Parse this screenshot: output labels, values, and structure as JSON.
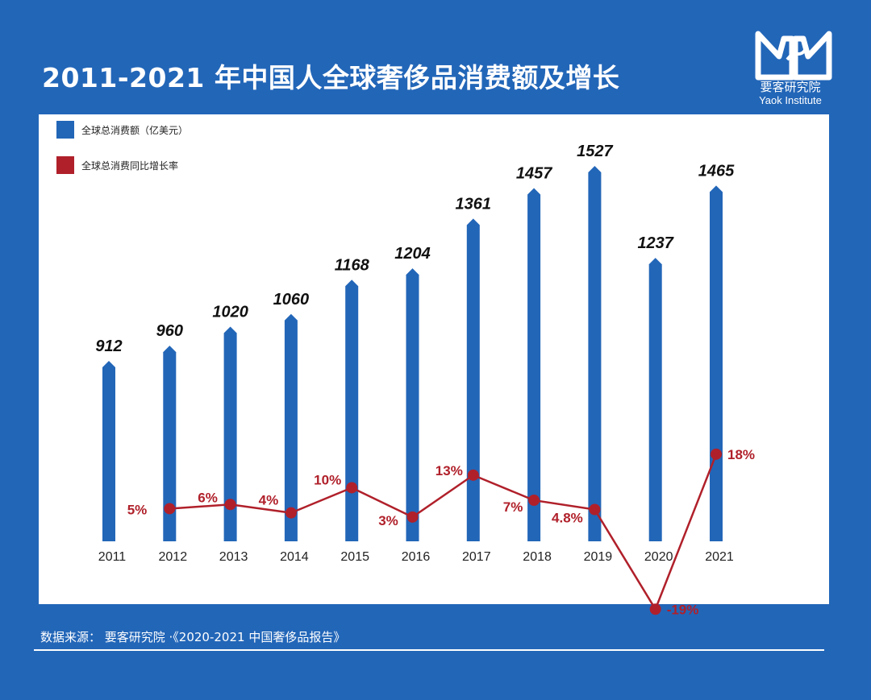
{
  "title": "2011-2021 年中国人全球奢侈品消费额及增长",
  "logo": {
    "name_cn": "要客研究院",
    "name_en": "Yaok Institute"
  },
  "source": "数据来源：  要客研究院  ·《2020-2021 中国奢侈品报告》",
  "colors": {
    "background": "#2266b8",
    "bar": "#2266b8",
    "line": "#b0202a",
    "panel": "#ffffff"
  },
  "chart_data": {
    "type": "bar+line",
    "categories": [
      "2011",
      "2012",
      "2013",
      "2014",
      "2015",
      "2016",
      "2017",
      "2018",
      "2019",
      "2020",
      "2021"
    ],
    "series": [
      {
        "name": "全球总消费额（亿美元）",
        "type": "bar",
        "color": "#2266b8",
        "values": [
          912,
          960,
          1020,
          1060,
          1168,
          1204,
          1361,
          1457,
          1527,
          1237,
          1465
        ],
        "labels": [
          "912",
          "960",
          "1020",
          "1060",
          "1168",
          "1204",
          "1361",
          "1457",
          "1527",
          "1237",
          "1465"
        ]
      },
      {
        "name": "全球总消费同比增长率",
        "type": "line",
        "color": "#b0202a",
        "values": [
          null,
          5,
          6,
          4,
          10,
          3,
          13,
          7,
          4.8,
          -19,
          18
        ],
        "labels": [
          "",
          "5%",
          "6%",
          "4%",
          "10%",
          "3%",
          "13%",
          "7%",
          "4.8%",
          "-19%",
          "18%"
        ]
      }
    ],
    "legend_position": "top-left",
    "grid": false
  }
}
